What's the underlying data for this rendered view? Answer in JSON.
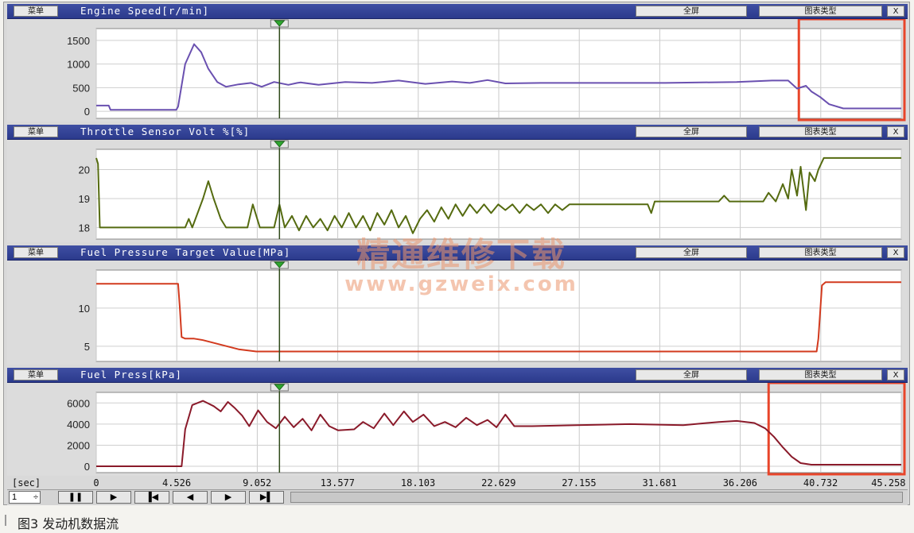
{
  "menu_label": "菜单",
  "fullscreen_label": "全屏",
  "chart_type_label": "图表类型",
  "close_label": "X",
  "x_axis": {
    "unit_label": "[sec]",
    "ticks": [
      "0",
      "4.526",
      "9.052",
      "13.577",
      "18.103",
      "22.629",
      "27.155",
      "31.681",
      "36.206",
      "40.732",
      "45.258"
    ],
    "range": [
      0,
      45.258
    ]
  },
  "cursor_time": 10.3,
  "panels": [
    {
      "title": "Engine Speed[r/min]",
      "line_color": "#6a50b0",
      "highlight_box": [
        39.5,
        45.258
      ],
      "chart_data": {
        "type": "line",
        "ylabel": "Engine Speed[r/min]",
        "yticks": [
          0,
          500,
          1000,
          1500
        ],
        "ylim": [
          -150,
          1750
        ],
        "x": [
          0,
          0.7,
          0.8,
          4.5,
          4.6,
          5.0,
          5.5,
          5.9,
          6.3,
          6.8,
          7.3,
          8.0,
          8.7,
          9.3,
          10.0,
          10.8,
          11.3,
          11.5,
          12.5,
          14.0,
          15.5,
          17.0,
          18.5,
          20.0,
          21.0,
          22.0,
          23.0,
          25.0,
          28.0,
          32.0,
          36.0,
          38.0,
          38.9,
          39.4,
          39.9,
          40.2,
          40.7,
          41.2,
          42.0,
          45.258
        ],
        "y": [
          120,
          120,
          30,
          30,
          100,
          1000,
          1420,
          1250,
          900,
          620,
          520,
          570,
          600,
          520,
          620,
          560,
          600,
          610,
          560,
          620,
          600,
          650,
          580,
          630,
          600,
          660,
          590,
          600,
          600,
          600,
          620,
          650,
          650,
          480,
          540,
          420,
          300,
          150,
          60,
          60
        ]
      }
    },
    {
      "title": "Throttle Sensor Volt %[%]",
      "line_color": "#556b10",
      "chart_data": {
        "type": "line",
        "ylabel": "Throttle Sensor Volt %[%]",
        "yticks": [
          18,
          19,
          20
        ],
        "ylim": [
          17.6,
          20.7
        ],
        "x": [
          0,
          0.1,
          0.2,
          5.0,
          5.2,
          5.4,
          6.0,
          6.3,
          6.6,
          7.0,
          7.3,
          8.5,
          8.8,
          9.2,
          10.0,
          10.3,
          10.6,
          11.0,
          11.4,
          11.8,
          12.2,
          12.6,
          13.0,
          13.4,
          13.8,
          14.2,
          14.6,
          15.0,
          15.4,
          15.8,
          16.2,
          16.6,
          17.0,
          17.4,
          17.8,
          18.2,
          18.6,
          19.0,
          19.4,
          19.8,
          20.2,
          20.6,
          21.0,
          21.4,
          21.8,
          22.2,
          22.6,
          23.0,
          23.4,
          23.8,
          24.2,
          24.6,
          25.0,
          25.4,
          25.8,
          26.2,
          26.6,
          27.0,
          31.0,
          31.2,
          31.4,
          35.0,
          35.3,
          35.6,
          37.5,
          37.8,
          38.2,
          38.6,
          38.9,
          39.1,
          39.4,
          39.6,
          39.9,
          40.1,
          40.4,
          40.6,
          40.9,
          45.258
        ],
        "y": [
          20.4,
          20.2,
          18.0,
          18.0,
          18.3,
          18.0,
          19.0,
          19.6,
          19.0,
          18.3,
          18.0,
          18.0,
          18.8,
          18.0,
          18.0,
          18.8,
          18.0,
          18.4,
          17.9,
          18.4,
          18.0,
          18.3,
          17.9,
          18.4,
          18.0,
          18.5,
          18.0,
          18.4,
          17.9,
          18.5,
          18.1,
          18.6,
          18.0,
          18.4,
          17.8,
          18.3,
          18.6,
          18.2,
          18.7,
          18.3,
          18.8,
          18.4,
          18.8,
          18.5,
          18.8,
          18.5,
          18.8,
          18.6,
          18.8,
          18.5,
          18.8,
          18.6,
          18.8,
          18.5,
          18.8,
          18.6,
          18.8,
          18.8,
          18.8,
          18.5,
          18.9,
          18.9,
          19.1,
          18.9,
          18.9,
          19.2,
          18.9,
          19.5,
          19.0,
          20.0,
          19.1,
          20.1,
          18.6,
          19.9,
          19.6,
          20.0,
          20.4,
          20.4
        ]
      }
    },
    {
      "title": "Fuel Pressure Target Value[MPa]",
      "line_color": "#d23a1e",
      "chart_data": {
        "type": "line",
        "ylabel": "Fuel Pressure Target Value[MPa]",
        "yticks": [
          5,
          10
        ],
        "ylim": [
          3,
          15
        ],
        "x": [
          0,
          4.6,
          4.7,
          4.8,
          5.0,
          5.5,
          6.0,
          8.0,
          9.0,
          40.5,
          40.6,
          40.8,
          41.0,
          45.258
        ],
        "y": [
          13.2,
          13.2,
          10.0,
          6.2,
          6.0,
          6.0,
          5.8,
          4.6,
          4.3,
          4.3,
          6.0,
          13.0,
          13.4,
          13.4
        ]
      }
    },
    {
      "title": "Fuel Press[kPa]",
      "line_color": "#8a1a2a",
      "highlight_box": [
        37.8,
        45.258
      ],
      "chart_data": {
        "type": "line",
        "ylabel": "Fuel Press[kPa]",
        "yticks": [
          0,
          2000,
          4000,
          6000
        ],
        "ylim": [
          -600,
          7000
        ],
        "x": [
          0,
          4.8,
          5.0,
          5.4,
          6.0,
          6.6,
          7.0,
          7.4,
          7.8,
          8.2,
          8.6,
          9.1,
          9.6,
          10.1,
          10.6,
          11.1,
          11.6,
          12.1,
          12.6,
          13.1,
          13.6,
          14.5,
          15.0,
          15.6,
          16.2,
          16.7,
          17.3,
          17.8,
          18.4,
          19.0,
          19.6,
          20.2,
          20.8,
          21.4,
          22.0,
          22.5,
          23.0,
          23.5,
          24.5,
          27.0,
          30.0,
          33.0,
          35.0,
          36.0,
          37.0,
          37.6,
          38.1,
          38.6,
          39.1,
          39.6,
          40.2,
          41.0,
          45.258
        ],
        "y": [
          0,
          0,
          3500,
          5800,
          6200,
          5700,
          5200,
          6100,
          5500,
          4800,
          3800,
          5300,
          4200,
          3600,
          4700,
          3700,
          4500,
          3400,
          4900,
          3800,
          3400,
          3500,
          4200,
          3600,
          5000,
          3900,
          5200,
          4200,
          4900,
          3800,
          4200,
          3700,
          4600,
          3900,
          4400,
          3700,
          4900,
          3800,
          3800,
          3900,
          4000,
          3900,
          4200,
          4300,
          4100,
          3600,
          2800,
          1800,
          900,
          300,
          150,
          150,
          150
        ]
      }
    }
  ],
  "playback": {
    "speed_value": "1",
    "speed_spinner": "÷",
    "buttons": [
      {
        "name": "pause-button",
        "glyph": "❚❚"
      },
      {
        "name": "play-button",
        "glyph": "▶"
      },
      {
        "name": "jump-start-button",
        "glyph": "▐◀"
      },
      {
        "name": "step-back-button",
        "glyph": "◀"
      },
      {
        "name": "step-forward-button",
        "glyph": "▶"
      },
      {
        "name": "jump-end-button",
        "glyph": "▶▌"
      }
    ]
  },
  "watermark": {
    "text": "精通维修下载",
    "url": "www.gzweix.com"
  },
  "caption": "图3 发动机数据流"
}
